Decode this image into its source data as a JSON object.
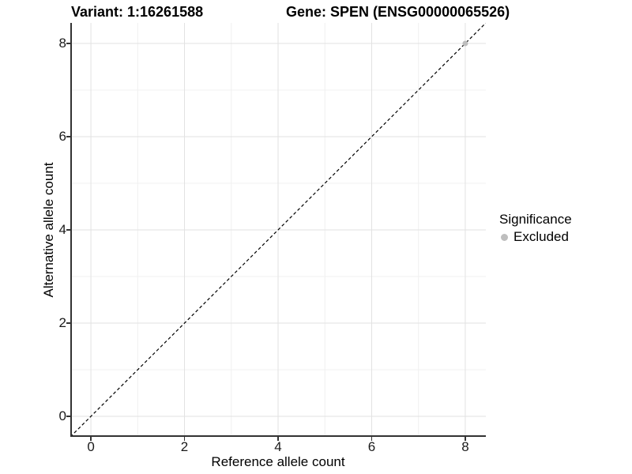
{
  "chart_data": {
    "type": "scatter",
    "titles": {
      "variant": "Variant: 1:16261588",
      "gene": "Gene: SPEN (ENSG00000065526)"
    },
    "xlabel": "Reference allele count",
    "ylabel": "Alternative allele count",
    "x_ticks": [
      0,
      2,
      4,
      6,
      8
    ],
    "y_ticks": [
      0,
      2,
      4,
      6,
      8
    ],
    "x_minor_ticks": [
      1,
      3,
      5,
      7
    ],
    "y_minor_ticks": [
      1,
      3,
      5,
      7
    ],
    "xlim": [
      -0.44,
      8.44
    ],
    "ylim": [
      -0.44,
      8.44
    ],
    "grid": true,
    "reference_line": {
      "type": "identity",
      "style": "dashed",
      "color": "#000000"
    },
    "series": [
      {
        "name": "Excluded",
        "color": "#BEBEBE",
        "points": [
          {
            "x": 8,
            "y": 8
          }
        ]
      }
    ],
    "legend": {
      "title": "Significance",
      "position": "right",
      "items": [
        {
          "label": "Excluded",
          "color": "#BEBEBE"
        }
      ]
    }
  },
  "colors": {
    "axis_line": "#333333",
    "tick_mark": "#333333",
    "major_grid": "#E2E2E2",
    "minor_grid": "#F0F0F0",
    "text": "#000000"
  }
}
